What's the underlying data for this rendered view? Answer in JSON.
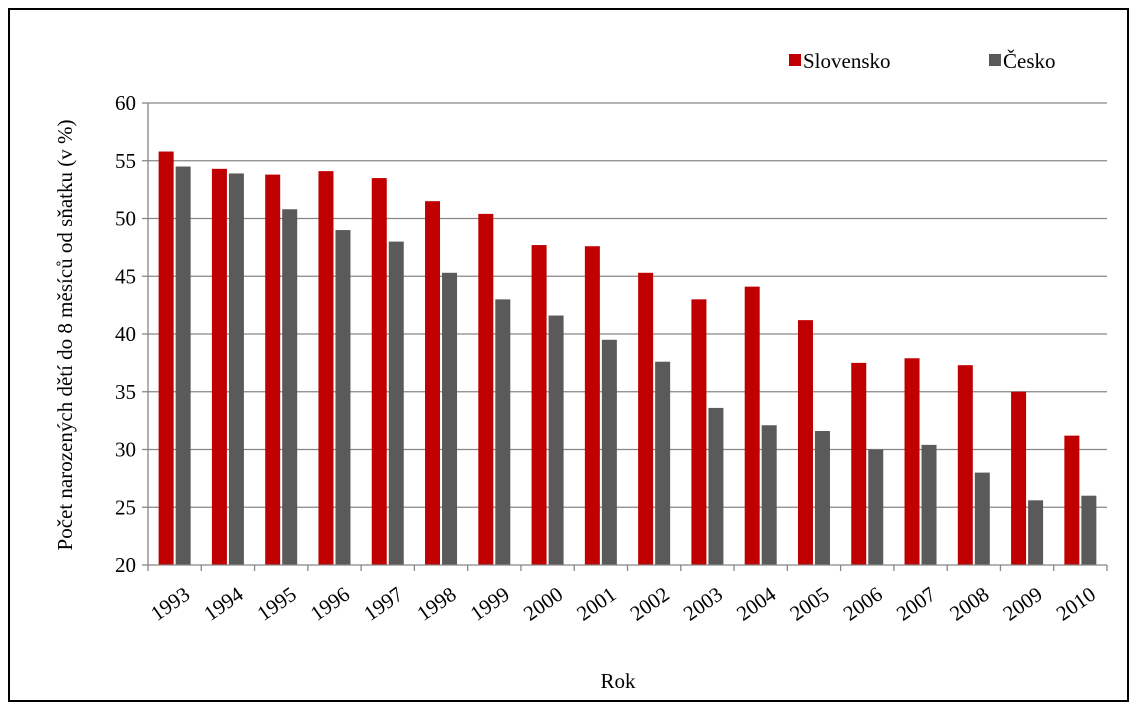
{
  "chart_data": {
    "type": "bar",
    "title": "",
    "xlabel": "Rok",
    "ylabel": "Počet narozených dětí do 8 měsíců od sňatku (v %)",
    "ylim": [
      20,
      60
    ],
    "yticks": [
      20,
      25,
      30,
      35,
      40,
      45,
      50,
      55,
      60
    ],
    "grid": "horizontal",
    "legend": "top-right",
    "categories": [
      "1993",
      "1994",
      "1995",
      "1996",
      "1997",
      "1998",
      "1999",
      "2000",
      "2001",
      "2002",
      "2003",
      "2004",
      "2005",
      "2006",
      "2007",
      "2008",
      "2009",
      "2010"
    ],
    "series": [
      {
        "name": "Slovensko",
        "color": "#c00000",
        "values": [
          55.8,
          54.3,
          53.8,
          54.1,
          53.5,
          51.5,
          50.4,
          47.7,
          47.6,
          45.3,
          43.0,
          44.1,
          41.2,
          37.5,
          37.9,
          37.3,
          35.0,
          31.2
        ]
      },
      {
        "name": "Česko",
        "color": "#5a5a5a",
        "values": [
          54.5,
          53.9,
          50.8,
          49.0,
          48.0,
          45.3,
          43.0,
          41.6,
          39.5,
          37.6,
          33.6,
          32.1,
          31.6,
          30.0,
          30.4,
          28.0,
          25.6,
          26.0
        ]
      }
    ]
  }
}
